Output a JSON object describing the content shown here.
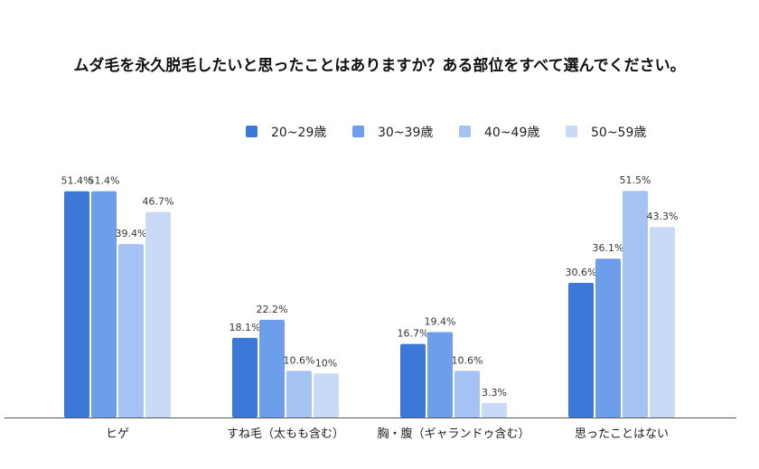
{
  "chart_data": {
    "type": "bar",
    "title": "ムダ毛を永久脱毛したいと思ったことはありますか？ある部位をすべて選んでください。",
    "categories": [
      "ヒゲ",
      "すね毛（太もも含む）",
      "胸・腹（ギャランドゥ含む）",
      "思ったことはない"
    ],
    "series": [
      {
        "name": "20~29歳",
        "color": "#3c78d8",
        "values": [
          51.4,
          18.1,
          16.7,
          30.6
        ],
        "labels": [
          "51.4%",
          "18.1%",
          "16.7%",
          "30.6%"
        ]
      },
      {
        "name": "30~39歳",
        "color": "#6d9eeb",
        "values": [
          51.4,
          22.2,
          19.4,
          36.1
        ],
        "labels": [
          "51.4%",
          "22.2%",
          "19.4%",
          "36.1%"
        ]
      },
      {
        "name": "40~49歳",
        "color": "#a4c2f4",
        "values": [
          39.4,
          10.6,
          10.6,
          51.5
        ],
        "labels": [
          "39.4%",
          "10.6%",
          "10.6%",
          "51.5%"
        ]
      },
      {
        "name": "50~59歳",
        "color": "#c9daf8",
        "values": [
          46.7,
          10,
          3.3,
          43.3
        ],
        "labels": [
          "46.7%",
          "10%",
          "3.3%",
          "43.3%"
        ]
      }
    ],
    "xlabel": "",
    "ylabel": "",
    "ylim": [
      0,
      55
    ],
    "grid": false,
    "legend": "top"
  }
}
